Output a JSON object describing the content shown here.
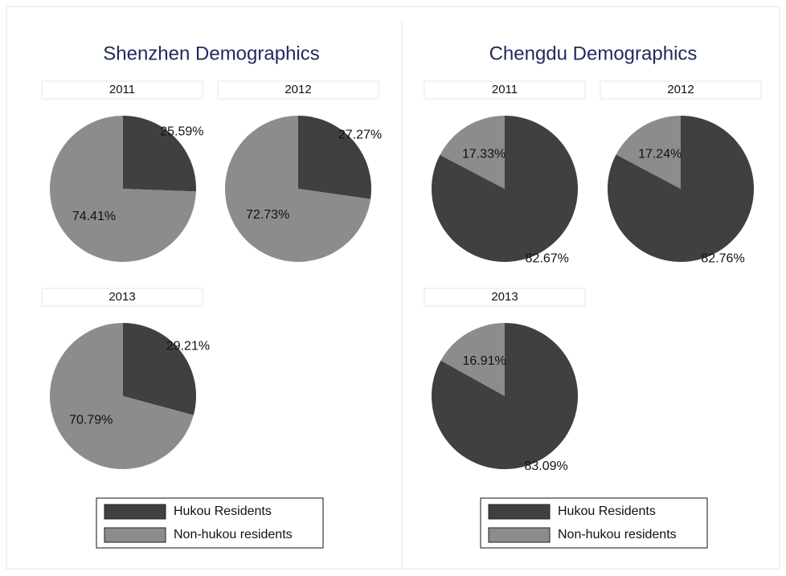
{
  "chart_data": [
    {
      "type": "pie",
      "title": "Shenzhen Demographics",
      "categories": [
        "Hukou Residents",
        "Non-hukou residents"
      ],
      "colors": [
        "#404040",
        "#8c8c8c"
      ],
      "pies": [
        {
          "title": "2011",
          "values": [
            25.59,
            74.41
          ],
          "value_labels": [
            "25.59%",
            "74.41%"
          ]
        },
        {
          "title": "2012",
          "values": [
            27.27,
            72.73
          ],
          "value_labels": [
            "27.27%",
            "72.73%"
          ]
        },
        {
          "title": "2013",
          "values": [
            29.21,
            70.79
          ],
          "value_labels": [
            "29.21%",
            "70.79%"
          ]
        }
      ]
    },
    {
      "type": "pie",
      "title": "Chengdu Demographics",
      "categories": [
        "Hukou Residents",
        "Non-hukou residents"
      ],
      "colors": [
        "#404040",
        "#8c8c8c"
      ],
      "pies": [
        {
          "title": "2011",
          "values": [
            82.67,
            17.33
          ],
          "value_labels": [
            "82.67%",
            "17.33%"
          ]
        },
        {
          "title": "2012",
          "values": [
            82.76,
            17.24
          ],
          "value_labels": [
            "82.76%",
            "17.24%"
          ]
        },
        {
          "title": "2013",
          "values": [
            83.09,
            16.91
          ],
          "value_labels": [
            "83.09%",
            "16.91%"
          ]
        }
      ]
    }
  ]
}
